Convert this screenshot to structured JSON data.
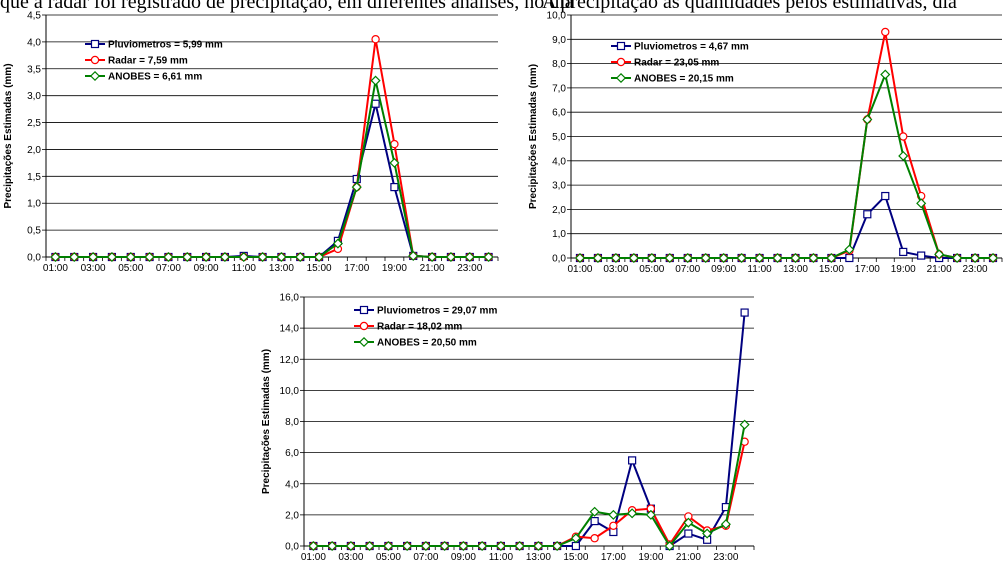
{
  "caption": {
    "left": "que a radar foi registrado de precipitação, em diferentes análises, no dia",
    "right": "A precipitação as quantidades pelos estimativas, dia"
  },
  "chart_data": [
    {
      "type": "line",
      "ylabel": "Precipitações Estimadas (mm)",
      "ylim": [
        0,
        4.5
      ],
      "yticks": [
        "0,0",
        "0,5",
        "1,0",
        "1,5",
        "2,0",
        "2,5",
        "3,0",
        "3,5",
        "4,0",
        "4,5"
      ],
      "x": [
        "01:00",
        "02:00",
        "03:00",
        "04:00",
        "05:00",
        "06:00",
        "07:00",
        "08:00",
        "09:00",
        "10:00",
        "11:00",
        "12:00",
        "13:00",
        "14:00",
        "15:00",
        "16:00",
        "17:00",
        "18:00",
        "19:00",
        "20:00",
        "21:00",
        "22:00",
        "23:00",
        "24:00"
      ],
      "xticks": [
        "01:00",
        "03:00",
        "05:00",
        "07:00",
        "09:00",
        "11:00",
        "13:00",
        "15:00",
        "17:00",
        "19:00",
        "21:00",
        "23:00"
      ],
      "grid": true,
      "legend_position": "top-left",
      "series": [
        {
          "name": "Pluviometros = 5,99 mm",
          "color": "#000080",
          "marker": "square",
          "values": [
            0,
            0,
            0,
            0,
            0,
            0,
            0,
            0,
            0,
            0,
            0.02,
            0,
            0,
            0,
            0,
            0.3,
            1.45,
            2.85,
            1.3,
            0.02,
            0,
            0,
            0,
            0
          ]
        },
        {
          "name": "Radar = 7,59 mm",
          "color": "#ff0000",
          "marker": "circle",
          "values": [
            0,
            0,
            0,
            0,
            0,
            0,
            0,
            0,
            0,
            0,
            0,
            0,
            0,
            0,
            0,
            0.15,
            1.3,
            4.05,
            2.1,
            0.02,
            0,
            0,
            0,
            0
          ]
        },
        {
          "name": "ANOBES = 6,61 mm",
          "color": "#008000",
          "marker": "diamond",
          "values": [
            0,
            0,
            0,
            0,
            0,
            0,
            0,
            0,
            0,
            0,
            0,
            0,
            0,
            0,
            0,
            0.25,
            1.3,
            3.28,
            1.75,
            0.02,
            0,
            0,
            0,
            0
          ]
        }
      ]
    },
    {
      "type": "line",
      "ylabel": "Precipitações Estimadas (mm)",
      "ylim": [
        0,
        10
      ],
      "yticks": [
        "0,0",
        "1,0",
        "2,0",
        "3,0",
        "4,0",
        "5,0",
        "6,0",
        "7,0",
        "8,0",
        "9,0",
        "10,0"
      ],
      "x": [
        "01:00",
        "02:00",
        "03:00",
        "04:00",
        "05:00",
        "06:00",
        "07:00",
        "08:00",
        "09:00",
        "10:00",
        "11:00",
        "12:00",
        "13:00",
        "14:00",
        "15:00",
        "16:00",
        "17:00",
        "18:00",
        "19:00",
        "20:00",
        "21:00",
        "22:00",
        "23:00",
        "24:00"
      ],
      "xticks": [
        "01:00",
        "03:00",
        "05:00",
        "07:00",
        "09:00",
        "11:00",
        "13:00",
        "15:00",
        "17:00",
        "19:00",
        "21:00",
        "23:00"
      ],
      "grid": true,
      "legend_position": "top-left",
      "series": [
        {
          "name": "Pluviometros = 4,67 mm",
          "color": "#000080",
          "marker": "square",
          "values": [
            0,
            0,
            0,
            0,
            0,
            0,
            0,
            0,
            0,
            0,
            0,
            0,
            0,
            0,
            0,
            0,
            1.8,
            2.55,
            0.25,
            0.1,
            0,
            0,
            0,
            0
          ]
        },
        {
          "name": "Radar = 23,05 mm",
          "color": "#ff0000",
          "marker": "circle",
          "values": [
            0,
            0,
            0,
            0,
            0,
            0,
            0,
            0,
            0,
            0,
            0,
            0,
            0,
            0,
            0,
            0.3,
            5.7,
            9.3,
            5.0,
            2.55,
            0.15,
            0,
            0,
            0
          ]
        },
        {
          "name": "ANOBES = 20,15 mm",
          "color": "#008000",
          "marker": "diamond",
          "values": [
            0,
            0,
            0,
            0,
            0,
            0,
            0,
            0,
            0,
            0,
            0,
            0,
            0,
            0,
            0,
            0.35,
            5.7,
            7.55,
            4.2,
            2.25,
            0.15,
            0,
            0,
            0
          ]
        }
      ]
    },
    {
      "type": "line",
      "ylabel": "Precipitações Estimadas (mm)",
      "ylim": [
        0,
        16
      ],
      "yticks": [
        "0,0",
        "2,0",
        "4,0",
        "6,0",
        "8,0",
        "10,0",
        "12,0",
        "14,0",
        "16,0"
      ],
      "x": [
        "01:00",
        "02:00",
        "03:00",
        "04:00",
        "05:00",
        "06:00",
        "07:00",
        "08:00",
        "09:00",
        "10:00",
        "11:00",
        "12:00",
        "13:00",
        "14:00",
        "15:00",
        "16:00",
        "17:00",
        "18:00",
        "19:00",
        "20:00",
        "21:00",
        "22:00",
        "23:00",
        "24:00"
      ],
      "xticks": [
        "01:00",
        "03:00",
        "05:00",
        "07:00",
        "09:00",
        "11:00",
        "13:00",
        "15:00",
        "17:00",
        "19:00",
        "21:00",
        "23:00"
      ],
      "grid": true,
      "legend_position": "top-left",
      "series": [
        {
          "name": "Pluviometros = 29,07 mm",
          "color": "#000080",
          "marker": "square",
          "values": [
            0,
            0,
            0,
            0,
            0,
            0,
            0,
            0,
            0,
            0,
            0,
            0,
            0,
            0,
            0,
            1.6,
            0.9,
            5.5,
            2.4,
            0,
            0.8,
            0.4,
            2.5,
            15.0
          ]
        },
        {
          "name": "Radar = 18,02 mm",
          "color": "#ff0000",
          "marker": "circle",
          "values": [
            0,
            0,
            0,
            0,
            0,
            0,
            0,
            0,
            0,
            0,
            0,
            0,
            0,
            0,
            0.6,
            0.5,
            1.3,
            2.3,
            2.4,
            0.1,
            1.9,
            1.0,
            1.3,
            6.7
          ]
        },
        {
          "name": "ANOBES = 20,50 mm",
          "color": "#008000",
          "marker": "diamond",
          "values": [
            0,
            0,
            0,
            0,
            0,
            0,
            0,
            0,
            0,
            0,
            0,
            0,
            0,
            0,
            0.5,
            2.2,
            2.0,
            2.1,
            2.0,
            0,
            1.5,
            0.8,
            1.4,
            7.8
          ]
        }
      ]
    }
  ]
}
